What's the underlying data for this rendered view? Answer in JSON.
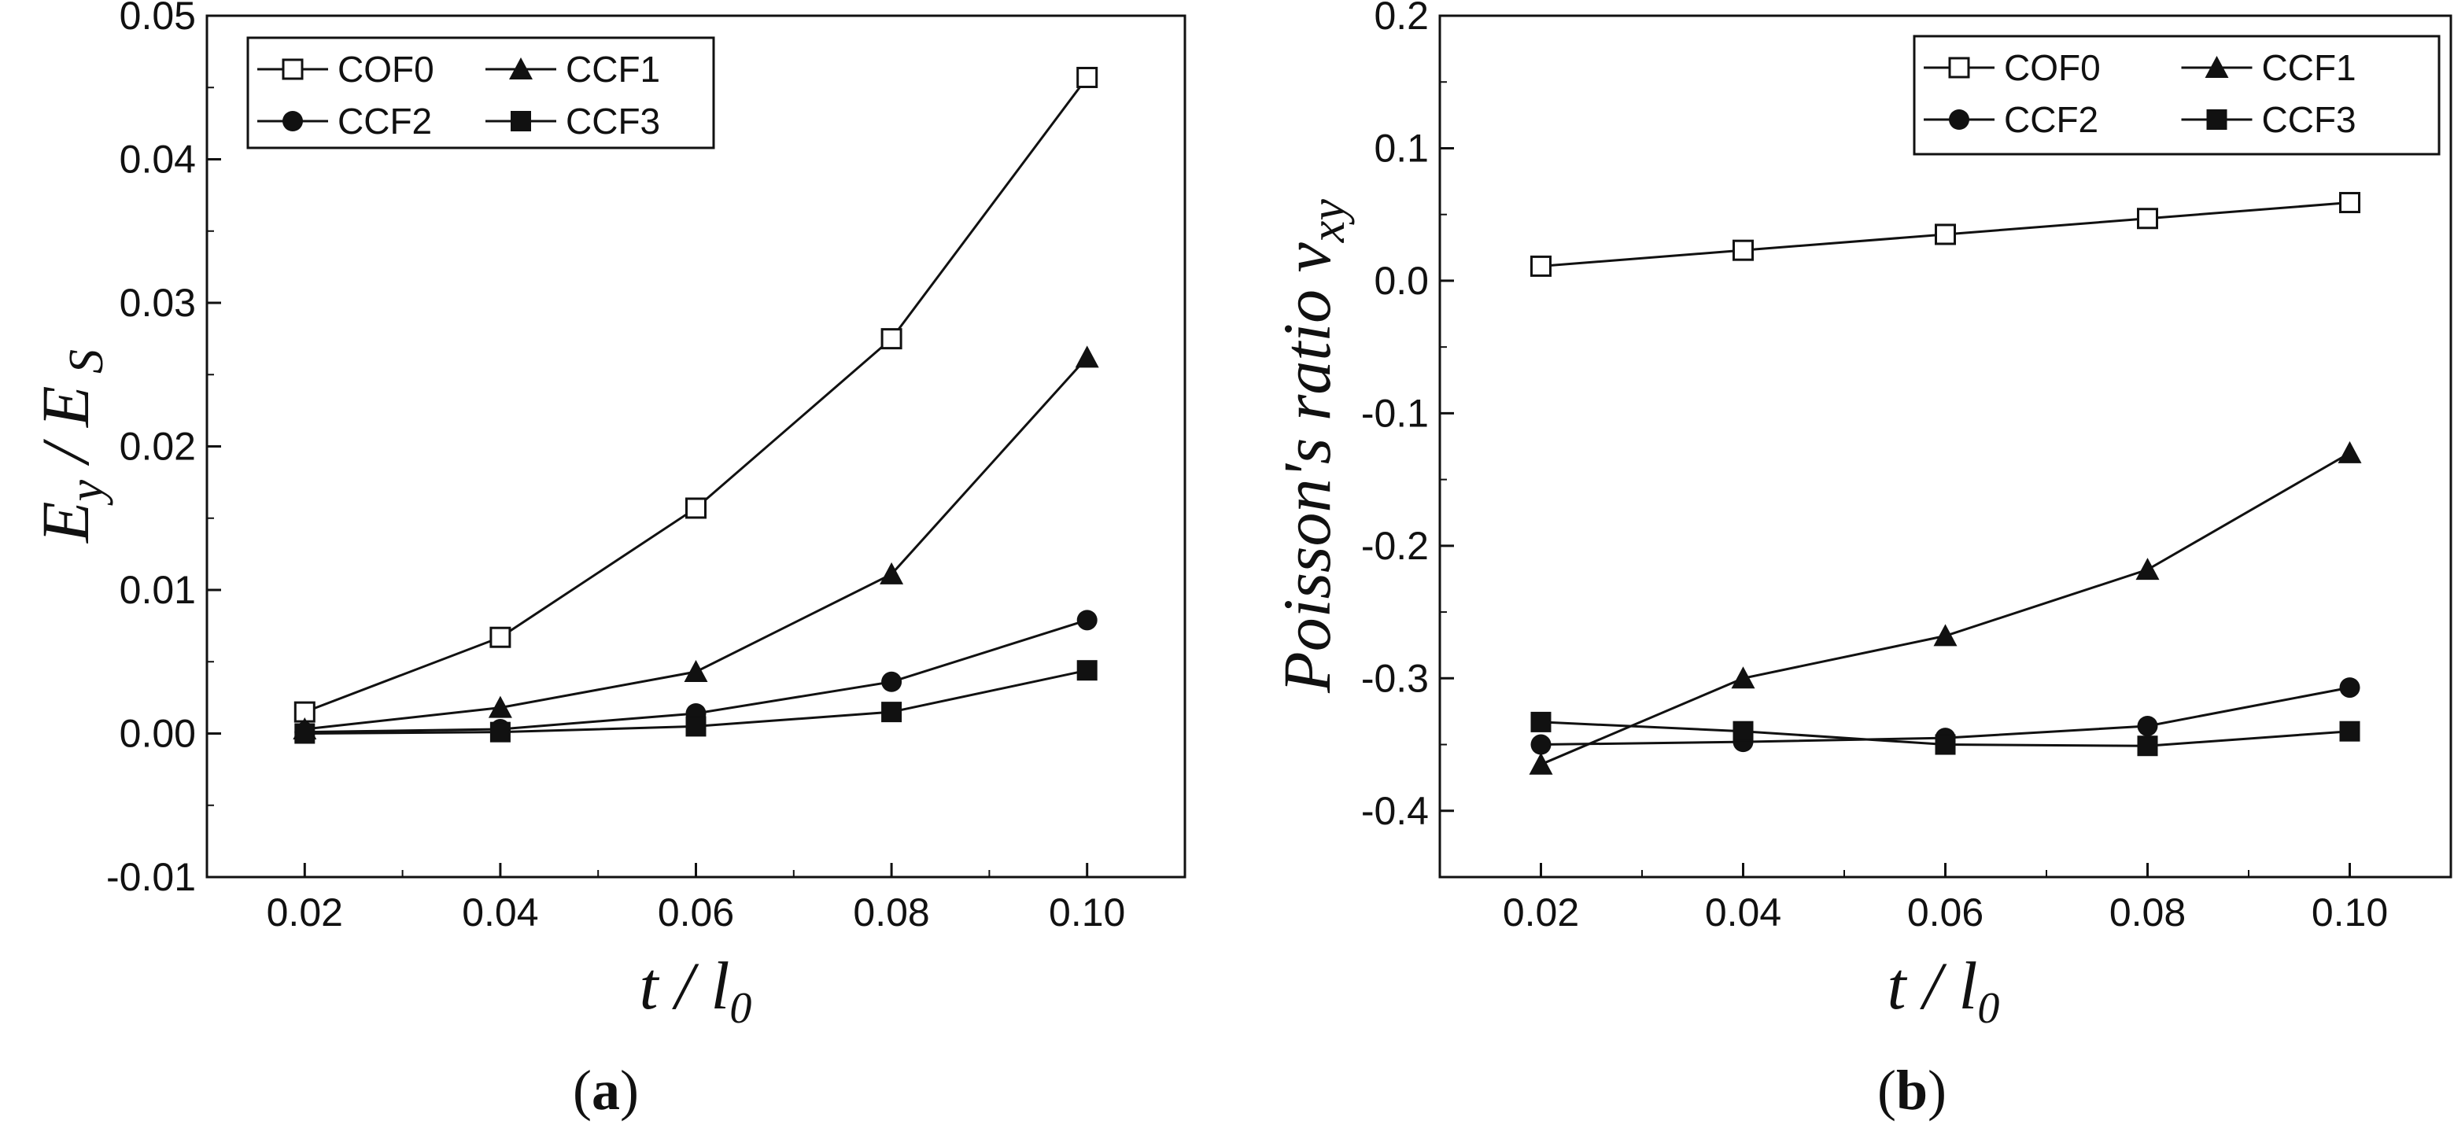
{
  "figure": {
    "panel_a_label": "(a)",
    "panel_b_label": "(b)"
  },
  "chart_data": [
    {
      "type": "line",
      "panel": "a",
      "title": "",
      "xlabel": "t / l0",
      "ylabel": "Ey / Es",
      "x": [
        0.02,
        0.04,
        0.06,
        0.08,
        0.1
      ],
      "xlim": [
        0.01,
        0.11
      ],
      "ylim": [
        -0.01,
        0.05
      ],
      "xticks": [
        "0.02",
        "0.04",
        "0.06",
        "0.08",
        "0.10"
      ],
      "yticks": [
        -0.01,
        0.0,
        0.01,
        0.02,
        0.03,
        0.04,
        0.05
      ],
      "ytick_labels": [
        "-0.01",
        "0.00",
        "0.01",
        "0.02",
        "0.03",
        "0.04",
        "0.05"
      ],
      "legend_position": "top-left",
      "series": [
        {
          "name": "COF0",
          "marker": "open-square",
          "values": [
            0.0015,
            0.0067,
            0.0157,
            0.0275,
            0.0457
          ]
        },
        {
          "name": "CCF1",
          "marker": "triangle",
          "values": [
            0.0003,
            0.0018,
            0.0043,
            0.0111,
            0.0262
          ]
        },
        {
          "name": "CCF2",
          "marker": "circle",
          "values": [
            0.0001,
            0.0003,
            0.0014,
            0.0036,
            0.0079
          ]
        },
        {
          "name": "CCF3",
          "marker": "square",
          "values": [
            0.0,
            0.0001,
            0.0005,
            0.0015,
            0.0044
          ]
        }
      ]
    },
    {
      "type": "line",
      "panel": "b",
      "title": "",
      "xlabel": "t / l0",
      "ylabel": "Poisson's ratio vxy",
      "x": [
        0.02,
        0.04,
        0.06,
        0.08,
        0.1
      ],
      "xlim": [
        0.01,
        0.11
      ],
      "ylim": [
        -0.45,
        0.2
      ],
      "xticks": [
        "0.02",
        "0.04",
        "0.06",
        "0.08",
        "0.10"
      ],
      "yticks": [
        -0.4,
        -0.3,
        -0.2,
        -0.1,
        0.0,
        0.1,
        0.2
      ],
      "ytick_labels": [
        "-0.4",
        "-0.3",
        "-0.2",
        "-0.1",
        "0.0",
        "0.1",
        "0.2"
      ],
      "legend_position": "top-right",
      "series": [
        {
          "name": "COF0",
          "marker": "open-square",
          "values": [
            0.011,
            0.023,
            0.035,
            0.047,
            0.059
          ]
        },
        {
          "name": "CCF1",
          "marker": "triangle",
          "values": [
            -0.365,
            -0.3,
            -0.268,
            -0.218,
            -0.13
          ]
        },
        {
          "name": "CCF2",
          "marker": "circle",
          "values": [
            -0.35,
            -0.348,
            -0.345,
            -0.336,
            -0.307
          ]
        },
        {
          "name": "CCF3",
          "marker": "square",
          "values": [
            -0.333,
            -0.34,
            -0.35,
            -0.351,
            -0.34
          ]
        }
      ]
    }
  ]
}
